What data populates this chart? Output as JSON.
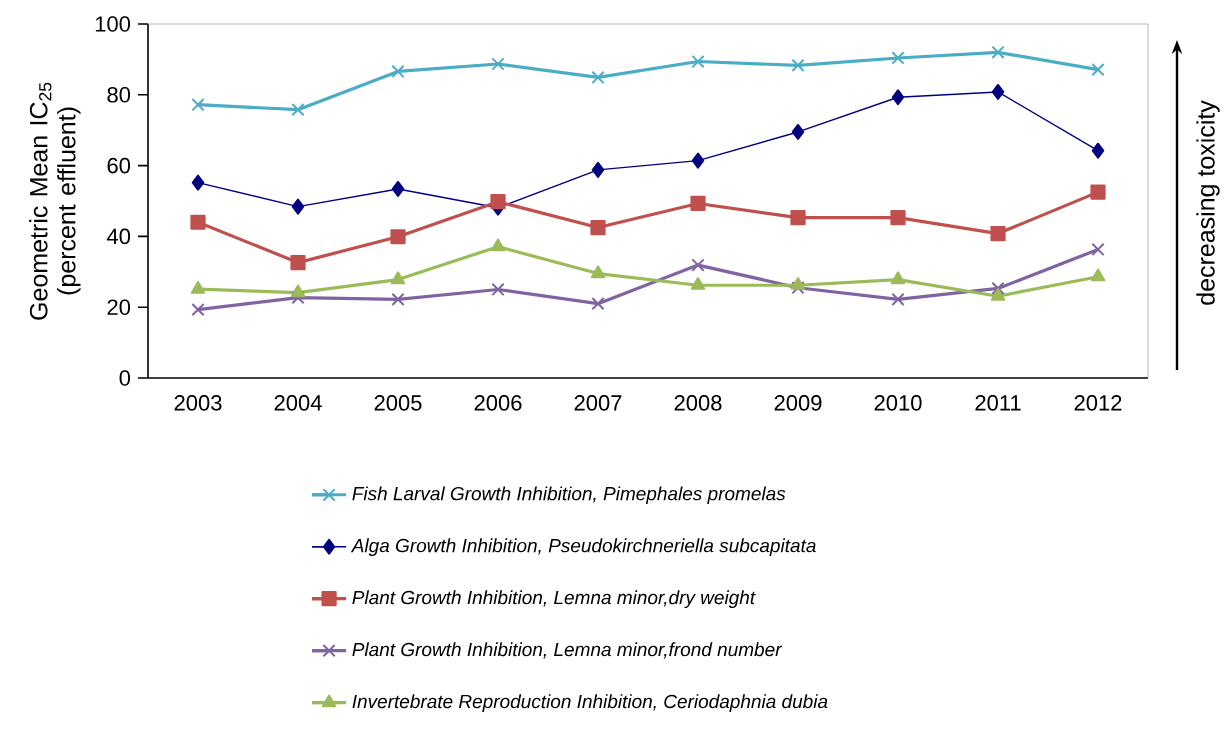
{
  "chart_data": {
    "type": "line",
    "ylabel": "Geometric Mean IC$_{25}$ (percent effluent)",
    "categories": [
      "2003",
      "2004",
      "2005",
      "2006",
      "2007",
      "2008",
      "2009",
      "2010",
      "2011",
      "2012"
    ],
    "ylim": [
      0,
      100
    ],
    "yticks": [
      0,
      20,
      40,
      60,
      80,
      100
    ],
    "grid": false,
    "legend": "bottom",
    "annotations": [
      "decreasing toxicity"
    ],
    "series": [
      {
        "name": "Fish Larval Growth Inhibition, Pimephales promelas",
        "color": "#4bacc6",
        "marker": "cross",
        "values": [
          77.2,
          75.8,
          86.6,
          88.7,
          84.9,
          89.4,
          88.3,
          90.4,
          92.0,
          87.1
        ]
      },
      {
        "name": "Alga Growth Inhibition, Pseudokirchneriella subcapitata",
        "color": "#000080",
        "marker": "diamond",
        "values": [
          55.2,
          48.4,
          53.4,
          48.1,
          58.8,
          61.4,
          69.5,
          79.3,
          80.8,
          64.2
        ]
      },
      {
        "name": "Plant Growth Inhibition, Lemna minor,dry weight",
        "color": "#c0504d",
        "marker": "square",
        "values": [
          44.0,
          32.6,
          39.9,
          49.8,
          42.5,
          49.3,
          45.3,
          45.3,
          40.8,
          52.5
        ]
      },
      {
        "name": "Plant Growth Inhibition, Lemna minor,frond number",
        "color": "#8064a2",
        "marker": "cross",
        "values": [
          19.3,
          22.7,
          22.2,
          25.0,
          21.0,
          31.9,
          25.5,
          22.2,
          25.3,
          36.3
        ]
      },
      {
        "name": "Invertebrate Reproduction Inhibition, Ceriodaphnia dubia",
        "color": "#9bbb59",
        "marker": "triangle",
        "values": [
          25.1,
          24.1,
          27.8,
          37.1,
          29.5,
          26.2,
          26.2,
          27.8,
          23.1,
          28.6
        ]
      }
    ]
  }
}
